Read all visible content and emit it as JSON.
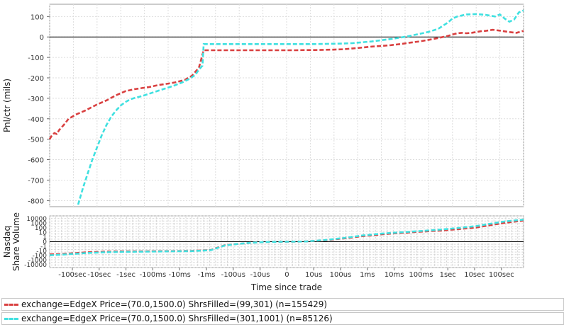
{
  "chart_data": [
    {
      "type": "line",
      "ylabel": "Pnl/ctr (mils)",
      "ylim": [
        -830,
        160
      ],
      "yticks": [
        "100",
        "0",
        "-100",
        "-200",
        "-300",
        "-400",
        "-500",
        "-600",
        "-700",
        "-800"
      ],
      "grid": true,
      "series": [
        {
          "name": "exchange=EdgeX Price=(70.0,1500.0) ShrsFilled=(99,301) (n=155429)",
          "color": "#d94040",
          "x": [
            -1000,
            -990,
            -980,
            -970,
            -960,
            -940,
            -920,
            -890,
            -850,
            -800,
            -760,
            -720,
            -680,
            -640,
            -610,
            -580,
            -540,
            -500,
            -470,
            -430,
            -400,
            -370,
            -350,
            -320,
            -300,
            -270,
            -240,
            -220,
            -190,
            -150,
            -120,
            -80,
            -40,
            0,
            40,
            80,
            120,
            160,
            200,
            240,
            280,
            320,
            360,
            400,
            440,
            480,
            520,
            560,
            600,
            640,
            680,
            700,
            720,
            740,
            760,
            780,
            800,
            820,
            840,
            870,
            900,
            940,
            970,
            1000
          ],
          "y": [
            -500,
            -480,
            -470,
            -475,
            -455,
            -430,
            -400,
            -380,
            -360,
            -330,
            -310,
            -285,
            -265,
            -255,
            -250,
            -245,
            -235,
            -228,
            -222,
            -210,
            -190,
            -150,
            -65,
            -65,
            -65,
            -65,
            -65,
            -65,
            -65,
            -65,
            -65,
            -65,
            -65,
            -65,
            -65,
            -64,
            -64,
            -63,
            -62,
            -60,
            -56,
            -52,
            -47,
            -44,
            -40,
            -35,
            -28,
            -22,
            -14,
            -5,
            5,
            12,
            18,
            20,
            18,
            20,
            24,
            28,
            30,
            35,
            31,
            24,
            20,
            30
          ]
        },
        {
          "name": "exchange=EdgeX Price=(70.0,1500.0) ShrsFilled=(301,1001) (n=85126)",
          "color": "#40e0e0",
          "x": [
            -880,
            -860,
            -840,
            -820,
            -800,
            -780,
            -760,
            -740,
            -720,
            -700,
            -680,
            -660,
            -640,
            -620,
            -600,
            -560,
            -520,
            -480,
            -440,
            -410,
            -385,
            -370,
            -355,
            -350,
            -320,
            -280,
            -240,
            -200,
            -160,
            -120,
            -80,
            -40,
            0,
            40,
            80,
            120,
            160,
            200,
            240,
            280,
            320,
            360,
            400,
            440,
            480,
            520,
            560,
            600,
            640,
            660,
            680,
            700,
            720,
            760,
            800,
            840,
            880,
            900,
            920,
            940,
            960,
            980,
            1000
          ],
          "y": [
            -820,
            -740,
            -670,
            -600,
            -540,
            -480,
            -430,
            -390,
            -360,
            -335,
            -318,
            -305,
            -298,
            -292,
            -285,
            -270,
            -255,
            -240,
            -222,
            -205,
            -185,
            -160,
            -140,
            -35,
            -35,
            -35,
            -35,
            -35,
            -35,
            -35,
            -35,
            -35,
            -35,
            -35,
            -35,
            -35,
            -34,
            -33,
            -32,
            -30,
            -26,
            -22,
            -16,
            -10,
            -3,
            5,
            15,
            25,
            40,
            55,
            70,
            90,
            100,
            110,
            112,
            108,
            100,
            110,
            90,
            75,
            85,
            120,
            130
          ]
        }
      ]
    },
    {
      "type": "line",
      "ylabel": "Nasdaq Share Volume",
      "xlabel": "Time since trade",
      "yticks": [
        "10000",
        "1000",
        "100",
        "10",
        "1",
        "0",
        "-1",
        "-10",
        "-100",
        "-1000",
        "-10000"
      ],
      "xticks": [
        "-100sec",
        "-10sec",
        "-1sec",
        "-100ms",
        "-10ms",
        "-1ms",
        "-100us",
        "-10us",
        "0",
        "10us",
        "100us",
        "1ms",
        "10ms",
        "100ms",
        "1sec",
        "10sec",
        "100sec"
      ],
      "ylim": [
        -10000,
        10000
      ],
      "grid": true,
      "series": [
        {
          "name": "exchange=EdgeX Price=(70.0,1500.0) ShrsFilled=(99,301) (n=155429)",
          "color": "#d94040",
          "x": [
            -1000,
            -960,
            -900,
            -840,
            -760,
            -700,
            -600,
            -500,
            -400,
            -320,
            -260,
            -200,
            -140,
            -80,
            0,
            80,
            160,
            240,
            320,
            400,
            480,
            560,
            640,
            720,
            800,
            860,
            920,
            1000
          ],
          "y": [
            -5.5,
            -5.4,
            -5.0,
            -4.6,
            -4.3,
            -4.2,
            -4.15,
            -4.1,
            -4.0,
            -3.6,
            -1.5,
            -0.9,
            -0.4,
            -0.1,
            0,
            0.1,
            0.6,
            1.4,
            2.4,
            3.2,
            3.8,
            4.3,
            4.8,
            5.4,
            6.2,
            7.2,
            8.2,
            9.2
          ]
        },
        {
          "name": "exchange=EdgeX Price=(70.0,1500.0) ShrsFilled=(301,1001) (n=85126)",
          "color": "#40e0e0",
          "x": [
            -1000,
            -960,
            -900,
            -840,
            -760,
            -700,
            -600,
            -500,
            -400,
            -320,
            -260,
            -200,
            -140,
            -80,
            0,
            80,
            160,
            240,
            320,
            400,
            480,
            560,
            640,
            720,
            800,
            860,
            920,
            1000
          ],
          "y": [
            -5.9,
            -5.7,
            -5.3,
            -4.9,
            -4.6,
            -4.4,
            -4.3,
            -4.2,
            -4.1,
            -3.7,
            -1.6,
            -0.9,
            -0.4,
            -0.1,
            0,
            0.1,
            0.7,
            1.6,
            2.7,
            3.5,
            4.1,
            4.6,
            5.2,
            5.9,
            6.8,
            7.8,
            8.8,
            9.6
          ]
        }
      ]
    }
  ]
}
